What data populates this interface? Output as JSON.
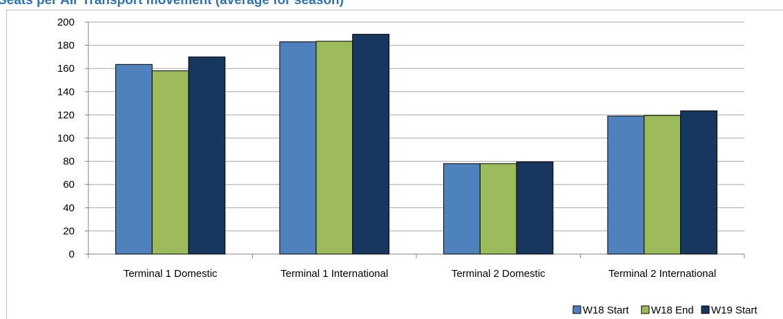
{
  "chart_data": {
    "type": "bar",
    "title": "Seats per Air Transport movement (average for season)",
    "categories": [
      "Terminal 1 Domestic",
      "Terminal 1 International",
      "Terminal 2 Domestic",
      "Terminal 2 International"
    ],
    "series": [
      {
        "name": "W18 Start",
        "color": "#4f81bd",
        "values": [
          163.5,
          183,
          78,
          119
        ]
      },
      {
        "name": "W18 End",
        "color": "#9bbb59",
        "values": [
          158,
          183.5,
          78,
          119.5
        ]
      },
      {
        "name": "W19 Start",
        "color": "#17375e",
        "values": [
          170,
          189.5,
          79.5,
          123.5
        ]
      }
    ],
    "ylim": [
      0,
      200
    ],
    "yticks": [
      0,
      20,
      40,
      60,
      80,
      100,
      120,
      140,
      160,
      180,
      200
    ],
    "grid": true,
    "legend": "bottom-right"
  }
}
